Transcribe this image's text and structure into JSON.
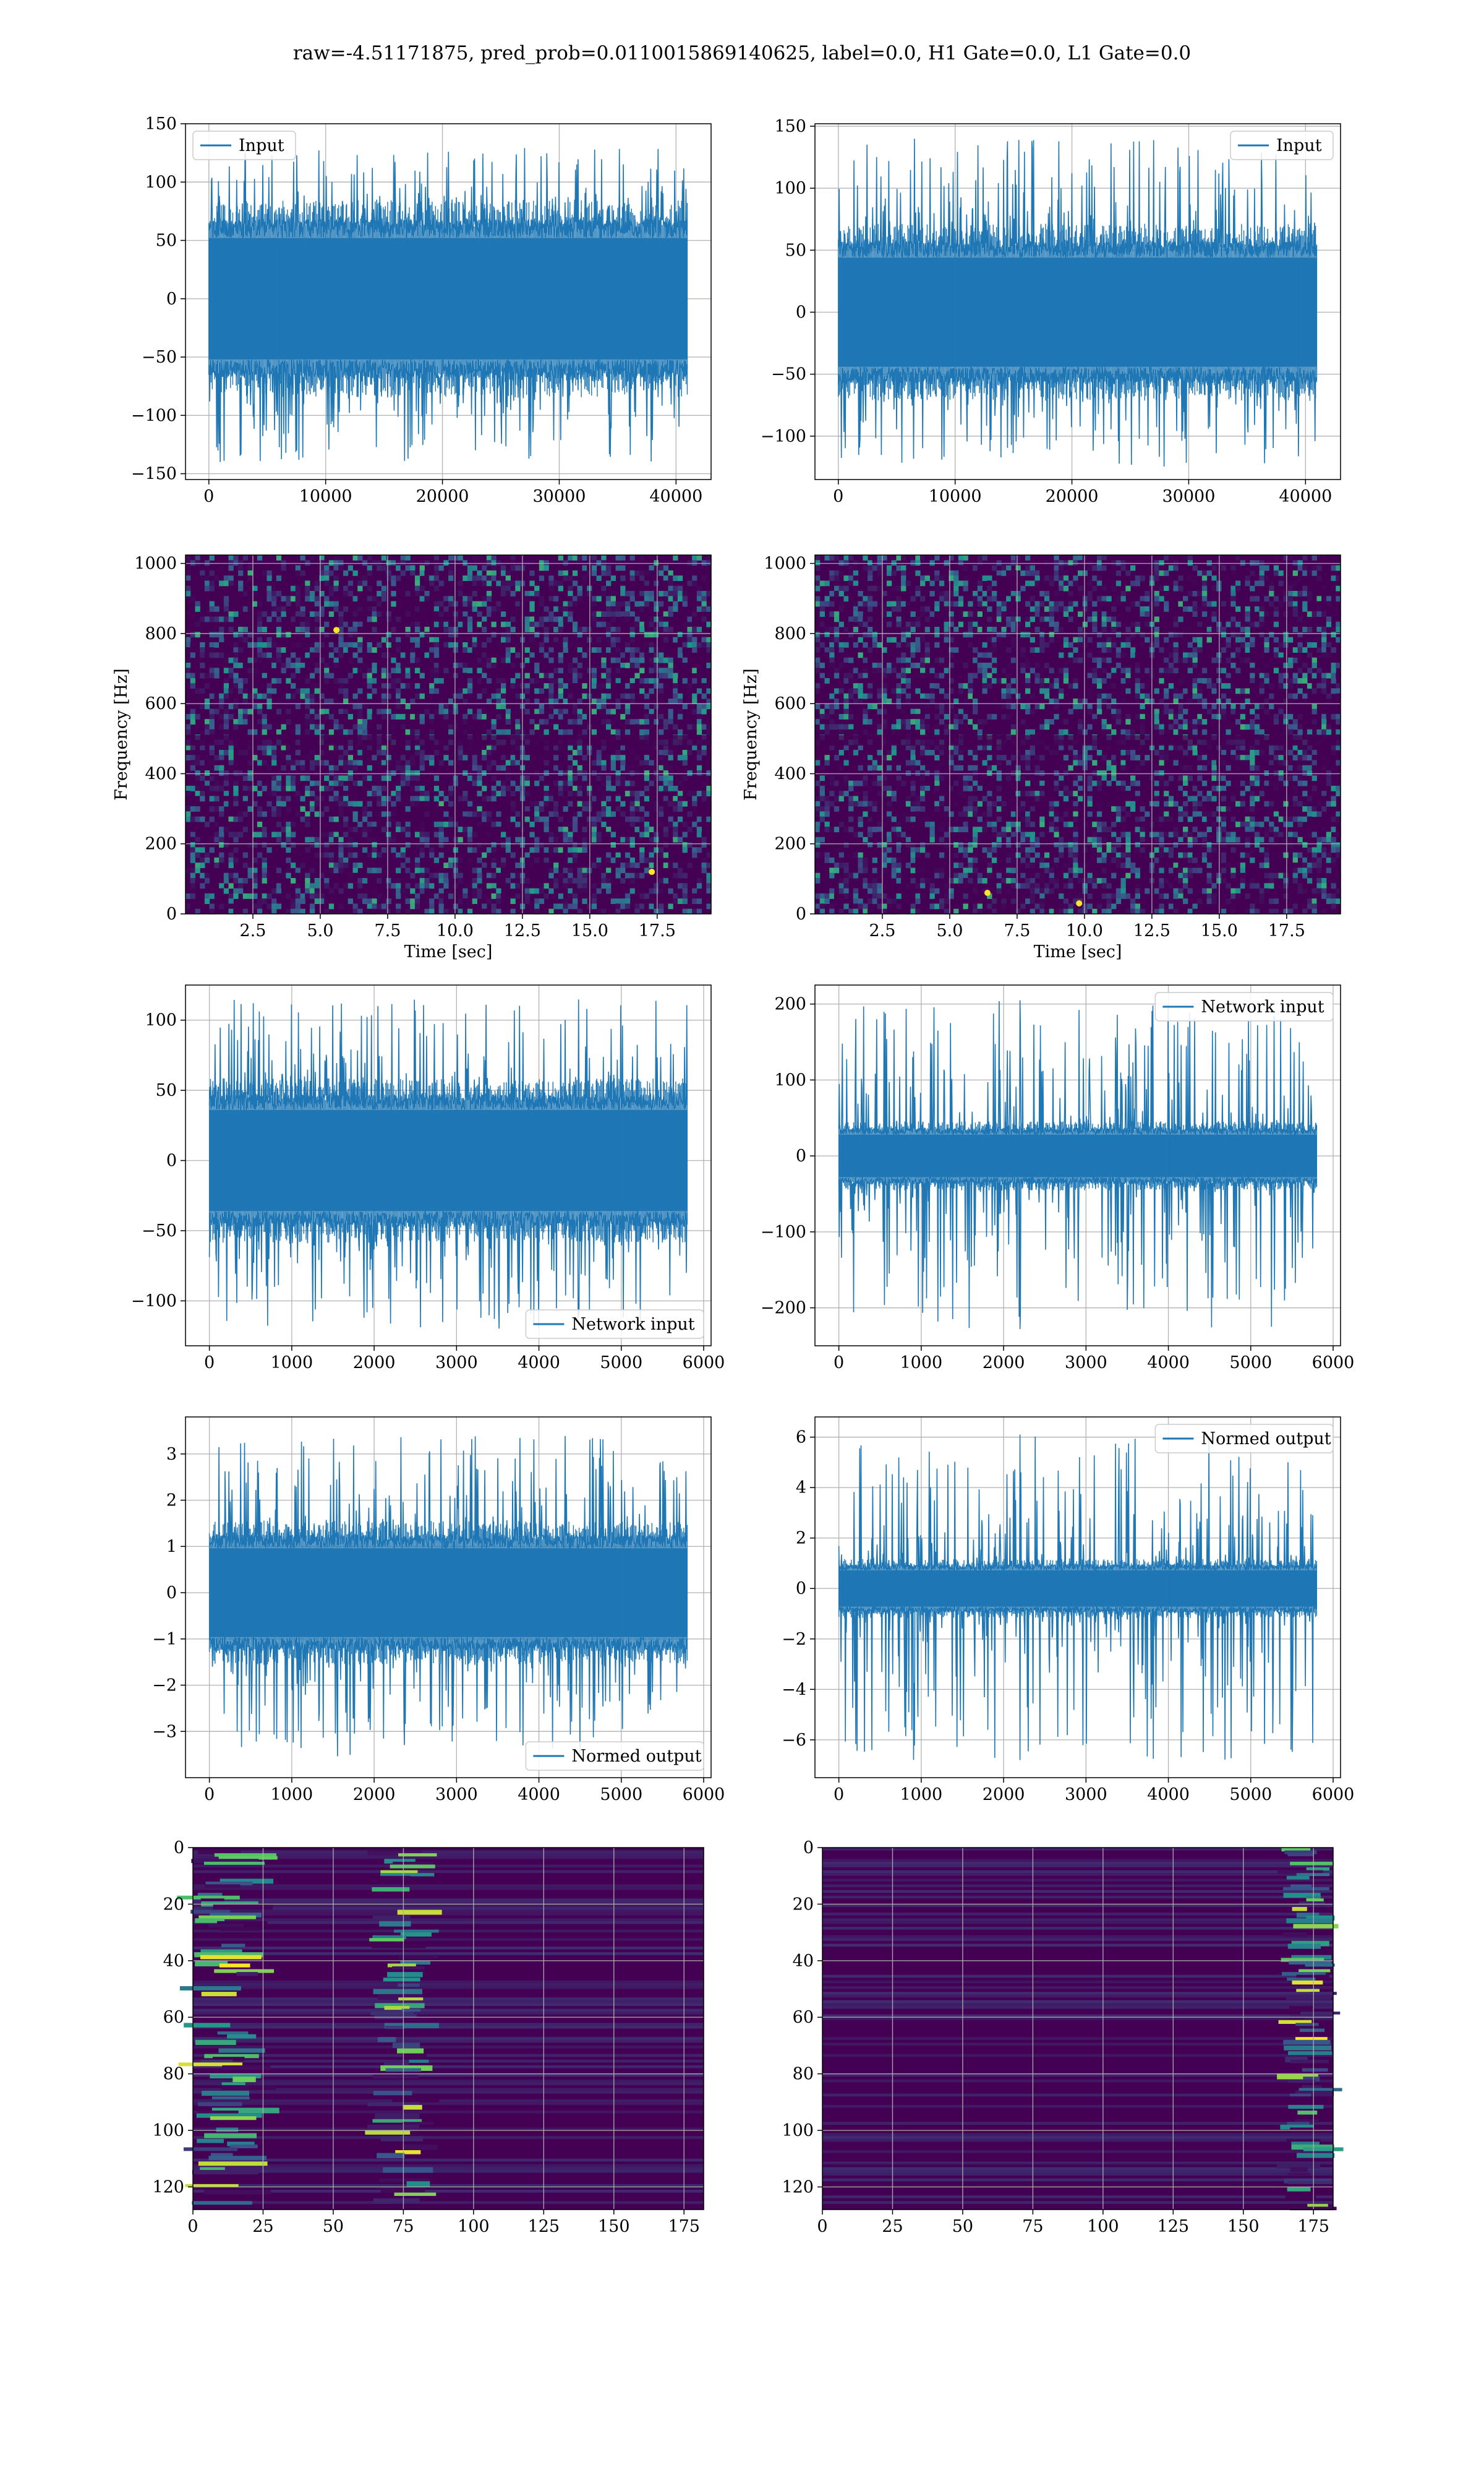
{
  "figure": {
    "title": "raw=-4.51171875, pred_prob=0.0110015869140625, label=0.0, H1 Gate=0.0, L1 Gate=0.0"
  },
  "colors": {
    "series": "#1f77b4",
    "grid": "#b0b0b0",
    "viridis_dark": "#440154",
    "viridis_blue": "#3b528b",
    "viridis_teal": "#21918c",
    "viridis_green": "#5ec962",
    "viridis_yellow": "#fde725"
  },
  "chart_data": [
    {
      "id": "h1-input",
      "type": "line",
      "series": [
        {
          "name": "Input",
          "stats": {
            "n": 40960,
            "core_amp": 65,
            "peak_max": 130,
            "peak_min": -140
          }
        }
      ],
      "x": {
        "range": [
          0,
          40960
        ]
      },
      "xlim": [
        -2000,
        43000
      ],
      "ylim": [
        -155,
        150
      ],
      "xticks": [
        0,
        10000,
        20000,
        30000,
        40000
      ],
      "yticks": [
        -150,
        -100,
        -50,
        0,
        50,
        100,
        150
      ],
      "legend": "top-left",
      "grid": true,
      "xlabel": "",
      "ylabel": ""
    },
    {
      "id": "l1-input",
      "type": "line",
      "series": [
        {
          "name": "Input",
          "stats": {
            "n": 40960,
            "core_amp": 55,
            "peak_max": 140,
            "peak_min": -125
          }
        }
      ],
      "x": {
        "range": [
          0,
          40960
        ]
      },
      "xlim": [
        -2000,
        43000
      ],
      "ylim": [
        -135,
        152
      ],
      "xticks": [
        0,
        10000,
        20000,
        30000,
        40000
      ],
      "yticks": [
        -100,
        -50,
        0,
        50,
        100,
        150
      ],
      "legend": "top-right",
      "grid": true,
      "xlabel": "",
      "ylabel": ""
    },
    {
      "id": "h1-spectrogram",
      "type": "heatmap",
      "xlim": [
        0,
        19.5
      ],
      "ylim": [
        0,
        1024
      ],
      "xticks": [
        2.5,
        5.0,
        7.5,
        10.0,
        12.5,
        15.0,
        17.5
      ],
      "xtick_labels": [
        "2.5",
        "5.0",
        "7.5",
        "10.0",
        "12.5",
        "15.0",
        "17.5"
      ],
      "yticks": [
        0,
        200,
        400,
        600,
        800,
        1000
      ],
      "xlabel": "Time [sec]",
      "ylabel": "Frequency [Hz]",
      "colormap": "viridis",
      "grid": true,
      "hot_spots": [
        {
          "t": 5.6,
          "f": 810
        },
        {
          "t": 17.3,
          "f": 120
        }
      ]
    },
    {
      "id": "l1-spectrogram",
      "type": "heatmap",
      "xlim": [
        0,
        19.5
      ],
      "ylim": [
        0,
        1024
      ],
      "xticks": [
        2.5,
        5.0,
        7.5,
        10.0,
        12.5,
        15.0,
        17.5
      ],
      "xtick_labels": [
        "2.5",
        "5.0",
        "7.5",
        "10.0",
        "12.5",
        "15.0",
        "17.5"
      ],
      "yticks": [
        0,
        200,
        400,
        600,
        800,
        1000
      ],
      "xlabel": "Time [sec]",
      "ylabel": "Frequency [Hz]",
      "colormap": "viridis",
      "grid": true,
      "hot_spots": [
        {
          "t": 9.8,
          "f": 30
        },
        {
          "t": 6.4,
          "f": 60
        }
      ]
    },
    {
      "id": "h1-network-input",
      "type": "line",
      "series": [
        {
          "name": "Network input",
          "stats": {
            "n": 5800,
            "core_amp": 45,
            "peak_max": 115,
            "peak_min": -120
          }
        }
      ],
      "x": {
        "range": [
          0,
          5800
        ]
      },
      "xlim": [
        -290,
        6090
      ],
      "ylim": [
        -132,
        125
      ],
      "xticks": [
        0,
        1000,
        2000,
        3000,
        4000,
        5000,
        6000
      ],
      "yticks": [
        -100,
        -50,
        0,
        50,
        100
      ],
      "legend": "bottom-right",
      "grid": true,
      "xlabel": "",
      "ylabel": ""
    },
    {
      "id": "l1-network-input",
      "type": "line",
      "series": [
        {
          "name": "Network input",
          "stats": {
            "n": 5800,
            "core_amp": 35,
            "peak_max": 205,
            "peak_min": -228,
            "spike_x": 2200
          }
        }
      ],
      "x": {
        "range": [
          0,
          5800
        ]
      },
      "xlim": [
        -290,
        6090
      ],
      "ylim": [
        -250,
        225
      ],
      "xticks": [
        0,
        1000,
        2000,
        3000,
        4000,
        5000,
        6000
      ],
      "yticks": [
        -200,
        -100,
        0,
        100,
        200
      ],
      "legend": "top-right",
      "grid": true,
      "xlabel": "",
      "ylabel": ""
    },
    {
      "id": "h1-normed-output",
      "type": "line",
      "series": [
        {
          "name": "Normed output",
          "stats": {
            "n": 5800,
            "core_amp": 1.2,
            "peak_max": 3.4,
            "peak_min": -3.6
          }
        }
      ],
      "x": {
        "range": [
          0,
          5800
        ]
      },
      "xlim": [
        -290,
        6090
      ],
      "ylim": [
        -4.0,
        3.8
      ],
      "xticks": [
        0,
        1000,
        2000,
        3000,
        4000,
        5000,
        6000
      ],
      "yticks": [
        -3,
        -2,
        -1,
        0,
        1,
        2,
        3
      ],
      "legend": "bottom-right",
      "grid": true,
      "xlabel": "",
      "ylabel": ""
    },
    {
      "id": "l1-normed-output",
      "type": "line",
      "series": [
        {
          "name": "Normed output",
          "stats": {
            "n": 5800,
            "core_amp": 0.9,
            "peak_max": 6.1,
            "peak_min": -6.8,
            "spike_x": 2200
          }
        }
      ],
      "x": {
        "range": [
          0,
          5800
        ]
      },
      "xlim": [
        -290,
        6090
      ],
      "ylim": [
        -7.5,
        6.8
      ],
      "xticks": [
        0,
        1000,
        2000,
        3000,
        4000,
        5000,
        6000
      ],
      "yticks": [
        -6,
        -4,
        -2,
        0,
        2,
        4,
        6
      ],
      "legend": "top-right",
      "grid": true,
      "xlabel": "",
      "ylabel": ""
    },
    {
      "id": "h1-feature-map",
      "type": "heatmap",
      "xlim": [
        0,
        182
      ],
      "ylim": [
        128,
        0
      ],
      "xticks": [
        0,
        25,
        50,
        75,
        100,
        125,
        150,
        175
      ],
      "yticks": [
        0,
        20,
        40,
        60,
        80,
        100,
        120
      ],
      "colormap": "viridis",
      "grid": true,
      "active_columns": [
        [
          0,
          25
        ],
        [
          65,
          85
        ]
      ]
    },
    {
      "id": "l1-feature-map",
      "type": "heatmap",
      "xlim": [
        0,
        182
      ],
      "ylim": [
        128,
        0
      ],
      "xticks": [
        0,
        25,
        50,
        75,
        100,
        125,
        150,
        175
      ],
      "yticks": [
        0,
        20,
        40,
        60,
        80,
        100,
        120
      ],
      "colormap": "viridis",
      "grid": true,
      "active_columns": [
        [
          165,
          182
        ]
      ]
    }
  ]
}
